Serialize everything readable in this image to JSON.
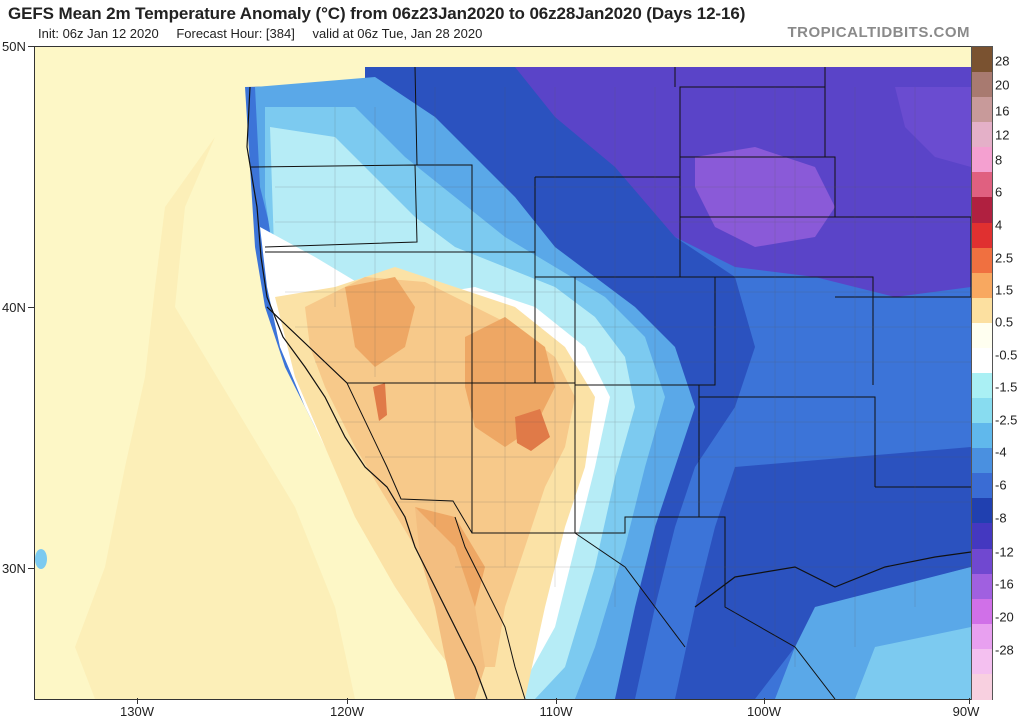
{
  "header": {
    "title": "GEFS Mean 2m Temperature Anomaly (°C) from 06z23Jan2020 to 06z28Jan2020 (Days 12-16)",
    "init": "Init: 06z Jan 12 2020",
    "forecast_hour": "Forecast Hour: [384]",
    "valid": "valid at 06z Tue, Jan 28 2020",
    "brand": "TROPICALTIDBITS.COM"
  },
  "axes": {
    "lat_labels": [
      "50N",
      "40N",
      "30N"
    ],
    "lon_labels": [
      "130W",
      "120W",
      "110W",
      "100W",
      "90W"
    ]
  },
  "colorbar": {
    "labels": [
      "28",
      "20",
      "16",
      "12",
      "8",
      "6",
      "4",
      "2.5",
      "1.5",
      "0.5",
      "-0.5",
      "-1.5",
      "-2.5",
      "-4",
      "-6",
      "-8",
      "-12",
      "-16",
      "-20",
      "-28"
    ],
    "colors": [
      "#7a5230",
      "#a87a70",
      "#c89a9a",
      "#e4b0c8",
      "#f4a0d0",
      "#e06080",
      "#b02040",
      "#e03030",
      "#f07040",
      "#f8a860",
      "#fce0a0",
      "#fffff0",
      "#ffffff",
      "#aaf0f4",
      "#88dcf0",
      "#60b8ec",
      "#4a90e0",
      "#3a6cd4",
      "#2040b0",
      "#4438c0",
      "#7048d0",
      "#a060e0",
      "#d070e8",
      "#e8a0f0",
      "#f4c0f0",
      "#f8d0e0"
    ]
  },
  "map_regions": {
    "ocean": "#fdf7c6",
    "warm_light": "#fbe2a6",
    "warm": "#f7c98a",
    "warm_strong": "#eea764",
    "warm_max": "#e07a48",
    "neutral": "#ffffff",
    "cool_light": "#b6ecf6",
    "cool": "#7ccaf0",
    "cool_mid": "#5aa8e8",
    "cold": "#3c74d8",
    "cold_deep": "#2b52bf",
    "very_cold": "#5a44c8",
    "extreme": "#8a5ad8"
  }
}
